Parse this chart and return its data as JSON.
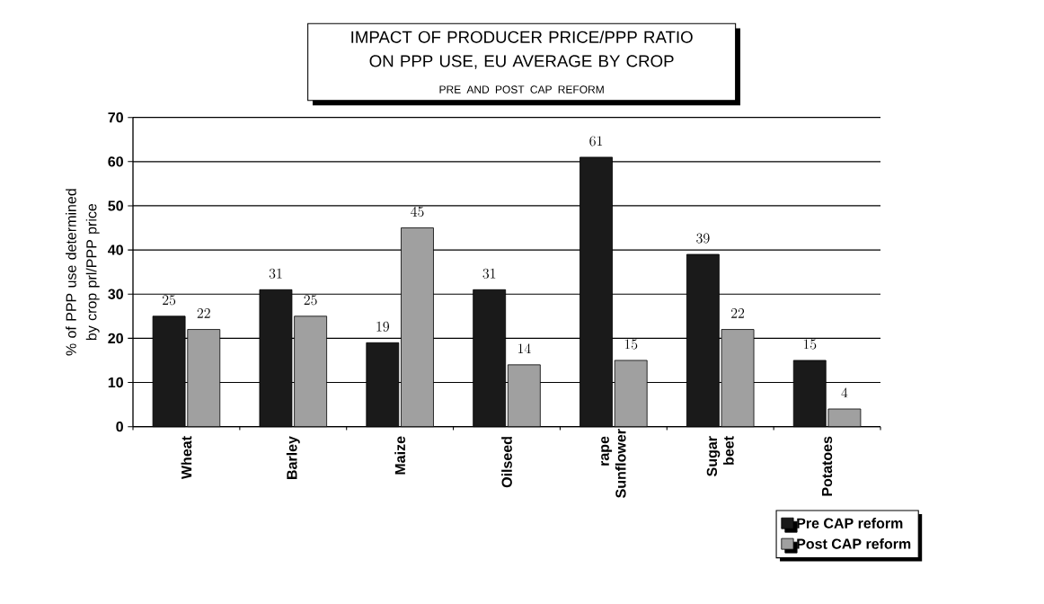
{
  "chart_data": {
    "type": "bar",
    "title": "IMPACT OF PRODUCER PRICE/PPP RATIO ON PPP USE, EU AVERAGE BY CROP",
    "subtitle": "PRE AND POST CAP REFORM",
    "ylabel": "% of PPP use determined by crop prl/PPP price",
    "categories": [
      "Wheat",
      "Barley",
      "Maize",
      "Oilseed",
      "rape Sunflower",
      "Sugar beet",
      "Potatoes"
    ],
    "series": [
      {
        "name": "Pre CAP reform",
        "color": "#1a1a1a",
        "values": [
          25,
          31,
          19,
          31,
          61,
          39,
          15
        ]
      },
      {
        "name": "Post CAP reform",
        "color": "#a0a0a0",
        "values": [
          22,
          25,
          45,
          14,
          15,
          22,
          4
        ]
      }
    ],
    "ylim": [
      0,
      70
    ],
    "yticks": [
      0,
      10,
      20,
      30,
      40,
      50,
      60,
      70
    ],
    "grid": "y",
    "legend": "bottom right",
    "data_labels": true
  }
}
